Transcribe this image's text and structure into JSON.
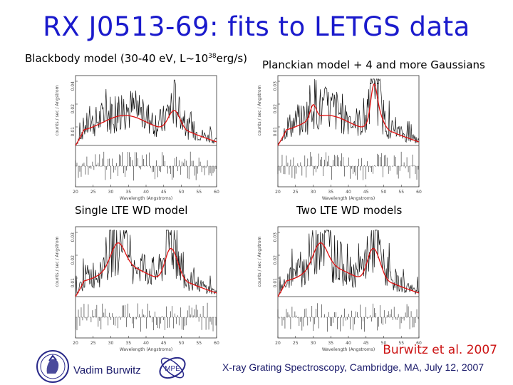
{
  "title": "RX J0513-69: fits to LETGS data",
  "captions": {
    "top_left_prefix": "Blackbody model (30-40 eV, L~10",
    "top_left_exp": "38",
    "top_left_suffix": "erg/s)",
    "top_right": "Planckian model + 4 and more Gaussians",
    "top_right_dots": "…",
    "bottom_left": "Single  LTE WD model",
    "bottom_right": "Two LTE WD models"
  },
  "panels": [
    {
      "ylabel": "counts / sec / Angstrom",
      "ticks_y": [
        "0.04",
        "0.02",
        "0.01"
      ],
      "xlabel": "Wavelength (Angstroms)",
      "ticks_x": [
        "20",
        "25",
        "30",
        "35",
        "40",
        "45",
        "50",
        "55",
        "60"
      ]
    },
    {
      "ylabel": "counts / sec / Angstrom",
      "ticks_y": [
        "0.03",
        "0.02",
        "0.01"
      ],
      "xlabel": "Wavelength (Angstroms)",
      "ticks_x": [
        "20",
        "25",
        "30",
        "35",
        "40",
        "45",
        "50",
        "55",
        "60"
      ]
    },
    {
      "ylabel": "counts / sec / Angstrom",
      "ticks_y": [
        "0.03",
        "0.02",
        "0.01"
      ],
      "xlabel": "Wavelength (Angstroms)",
      "ticks_x": [
        "20",
        "25",
        "30",
        "35",
        "40",
        "45",
        "50",
        "55",
        "60"
      ]
    },
    {
      "ylabel": "counts / sec / Angstrom",
      "ticks_y": [
        "0.03",
        "0.02",
        "0.01"
      ],
      "xlabel": "Wavelength (Angstroms)",
      "ticks_x": [
        "20",
        "25",
        "30",
        "35",
        "40",
        "45",
        "50",
        "55",
        "60"
      ]
    }
  ],
  "citation": "Burwitz et al. 2007",
  "footer": {
    "name": "Vadim Burwitz",
    "conference": "X-ray Grating Spectroscopy, Cambridge, MA, July 12, 2007",
    "logo_mpe": "MPE"
  },
  "colors": {
    "title": "#1a1acc",
    "citation": "#cc1414",
    "model": "#e01010",
    "data": "#111111"
  }
}
